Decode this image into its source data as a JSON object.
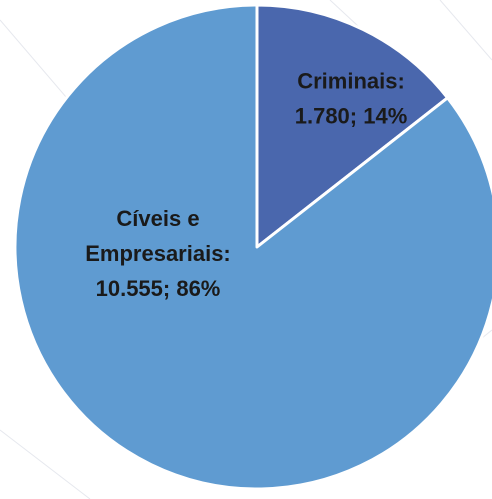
{
  "chart_data": {
    "type": "pie",
    "title": "",
    "slices": [
      {
        "name": "Criminais",
        "value": 1780,
        "percent": 14,
        "label_lines": [
          "Criminais:",
          "1.780; 14%"
        ],
        "color": "#4a67ad"
      },
      {
        "name": "Cíveis e Empresariais",
        "value": 10555,
        "percent": 86,
        "label_lines": [
          "Cíveis e",
          "Empresariais:",
          "10.555; 86%"
        ],
        "color": "#5f9bd1"
      }
    ],
    "start_angle_deg": 0,
    "direction": "clockwise",
    "slice_border_color": "#ffffff",
    "background_watermark_color": "#e6e8ee"
  }
}
